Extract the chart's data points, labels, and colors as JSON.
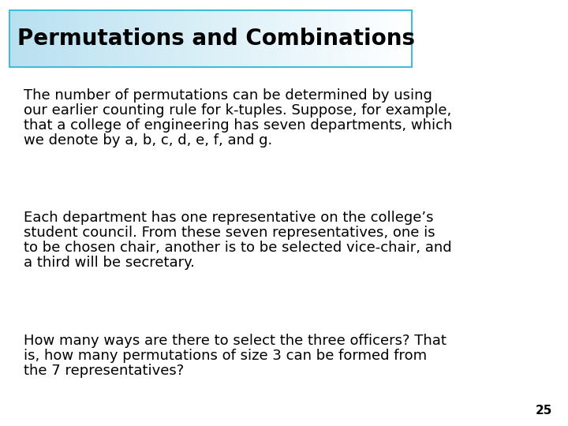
{
  "title": "Permutations and Combinations",
  "bg_color": "#ffffff",
  "title_border_color": "#44bbdd",
  "title_text_color": "#000000",
  "title_fontsize": 20,
  "body_fontsize": 13,
  "page_number": "25",
  "para1_lines": [
    "The number of permutations can be determined by using",
    "our earlier counting rule for k-tuples. Suppose, for example,",
    "that a college of engineering has seven departments, which",
    "we denote by a, b, c, d, e, f, and g."
  ],
  "para2_lines": [
    "Each department has one representative on the college’s",
    "student council. From these seven representatives, one is",
    "to be chosen chair, another is to be selected vice-chair, and",
    "a third will be secretary."
  ],
  "para3_lines": [
    "How many ways are there to select the three officers? That",
    "is, how many permutations of size 3 can be formed from",
    "the 7 representatives?"
  ],
  "title_grad_start": "#b8e0f0",
  "title_grad_end": "#ffffff"
}
